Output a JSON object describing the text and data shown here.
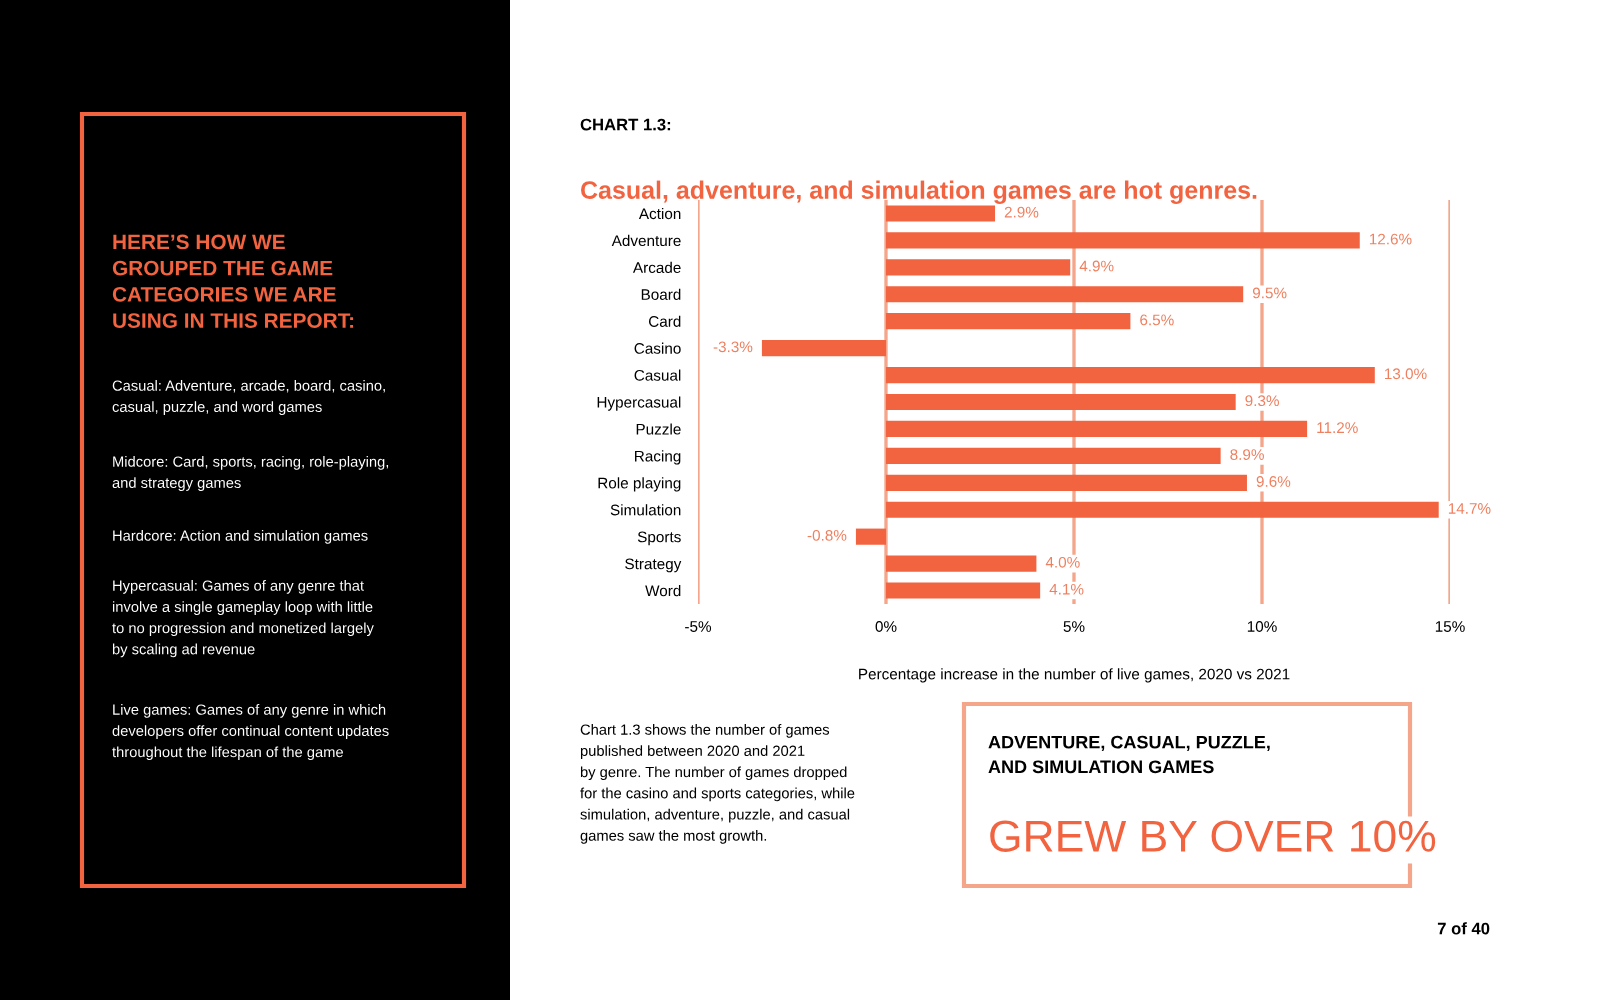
{
  "chart_data": {
    "type": "bar",
    "orientation": "horizontal",
    "title": "Casual, adventure, and simulation games are hot genres.",
    "xlabel": "Percentage increase in the number of live games, 2020 vs 2021",
    "categories": [
      "Action",
      "Adventure",
      "Arcade",
      "Board",
      "Card",
      "Casino",
      "Casual",
      "Hypercasual",
      "Puzzle",
      "Racing",
      "Role playing",
      "Simulation",
      "Sports",
      "Strategy",
      "Word"
    ],
    "values": [
      2.9,
      12.6,
      4.9,
      9.5,
      6.5,
      -3.3,
      13.0,
      9.3,
      11.2,
      8.9,
      9.6,
      14.7,
      -0.8,
      4.0,
      4.1
    ],
    "value_labels": [
      "2.9%",
      "12.6%",
      "4.9%",
      "9.5%",
      "6.5%",
      "-3.3%",
      "13.0%",
      "9.3%",
      "11.2%",
      "8.9%",
      "9.6%",
      "14.7%",
      "-0.8%",
      "4.0%",
      "4.1%"
    ],
    "color": "#f26340",
    "xlim": [
      -5,
      15
    ],
    "xticks": [
      {
        "value": -5,
        "label": "-5%"
      },
      {
        "value": 0,
        "label": "0%"
      },
      {
        "value": 5,
        "label": "5%"
      },
      {
        "value": 10,
        "label": "10%"
      },
      {
        "value": 15,
        "label": "15%"
      }
    ],
    "grid": "x",
    "annotations": [
      "CHART 1.3:",
      "HERE’S HOW WE\nGROUPED THE GAME\nCATEGORIES WE ARE\nUSING IN THIS REPORT:",
      "Casual: Adventure, arcade, board, casino,\ncasual, puzzle, and word games",
      "Midcore: Card, sports, racing, role-playing,\nand strategy games",
      "Hardcore: Action and simulation games",
      "Hypercasual: Games of any genre that\ninvolve a single gameplay loop with little\nto no progression and monetized largely\nby scaling ad revenue",
      "Live games: Games of any genre in which\ndevelopers offer continual content updates\nthroughout the lifespan of the game",
      "Chart 1.3 shows the number of games\npublished between 2020 and 2021\nby genre. The number of games dropped\nfor the casino and sports categories, while\nsimulation, adventure, puzzle, and casual\ngames saw the most growth.",
      "ADVENTURE, CASUAL, PUZZLE,\nAND SIMULATION GAMES",
      "GREW BY OVER 10%",
      "7 of 40"
    ]
  }
}
